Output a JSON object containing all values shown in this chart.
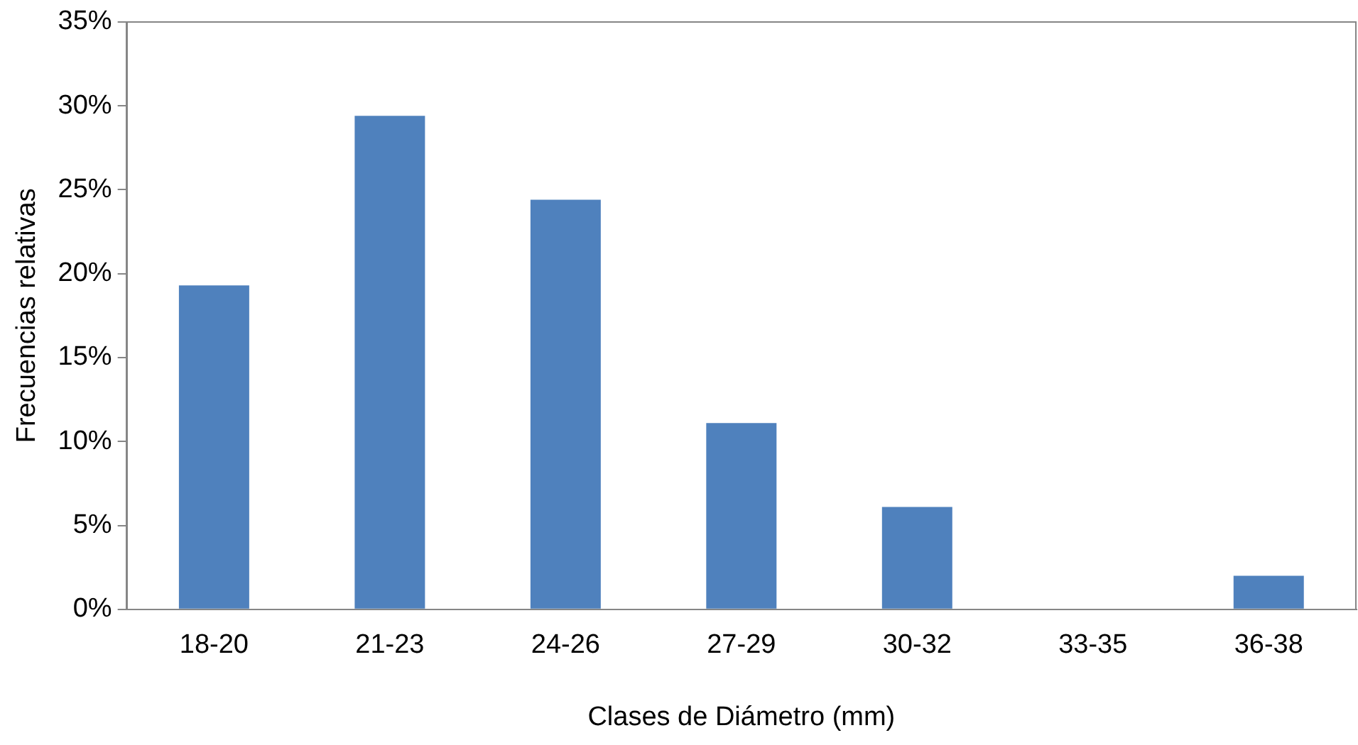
{
  "chart_data": {
    "type": "bar",
    "xlabel": "Clases de Diámetro (mm)",
    "ylabel": "Frecuencias relativas",
    "categories": [
      "18-20",
      "21-23",
      "24-26",
      "27-29",
      "30-32",
      "33-35",
      "36-38"
    ],
    "values": [
      19.3,
      29.4,
      24.4,
      11.1,
      6.1,
      0,
      2.0
    ],
    "color": "#4f81bd",
    "ylim": [
      0,
      35
    ],
    "yticks": [
      {
        "value": 0,
        "label": "0%"
      },
      {
        "value": 5,
        "label": "5%"
      },
      {
        "value": 10,
        "label": "10%"
      },
      {
        "value": 15,
        "label": "15%"
      },
      {
        "value": 20,
        "label": "20%"
      },
      {
        "value": 25,
        "label": "25%"
      },
      {
        "value": 30,
        "label": "30%"
      },
      {
        "value": 35,
        "label": "35%"
      }
    ],
    "grid": false,
    "legend": false
  }
}
